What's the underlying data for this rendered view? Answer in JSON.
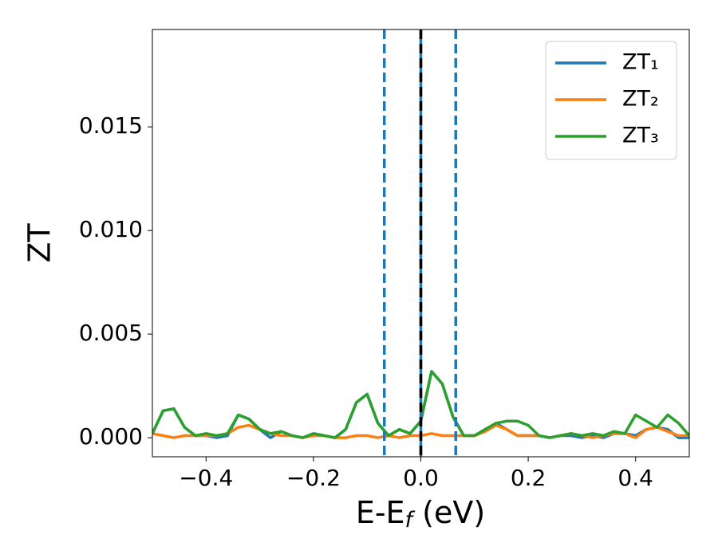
{
  "chart_data": {
    "type": "line",
    "ylabel": "ZT",
    "xlabel": {
      "main": "E-E",
      "sub": "f",
      "tail": " (eV)"
    },
    "xlim": [
      -0.5,
      0.5
    ],
    "ylim": [
      -0.00092,
      0.0197
    ],
    "xticks": [
      {
        "value": -0.4,
        "label": "−0.4"
      },
      {
        "value": -0.2,
        "label": "−0.2"
      },
      {
        "value": 0,
        "label": "0.0"
      },
      0.2,
      0.4
    ],
    "yticks": [
      {
        "value": 0,
        "label": "0.000"
      },
      {
        "value": 0.005,
        "label": "0.005"
      },
      {
        "value": 0.01,
        "label": "0.010"
      },
      {
        "value": 0.015,
        "label": "0.015"
      }
    ],
    "grid": false,
    "legend": "upper right",
    "vlines": [
      {
        "x": -0.068,
        "color": "#1f77b4",
        "style": "dashed"
      },
      {
        "x": 0,
        "color": "#1f77b4",
        "style": "solid"
      },
      {
        "x": 0,
        "color": "#000000",
        "style": "dashed"
      },
      {
        "x": 0.065,
        "color": "#1f77b4",
        "style": "dashed"
      }
    ],
    "x": [
      -0.5,
      -0.48,
      -0.46,
      -0.44,
      -0.42,
      -0.4,
      -0.38,
      -0.36,
      -0.34,
      -0.32,
      -0.3,
      -0.28,
      -0.26,
      -0.24,
      -0.22,
      -0.2,
      -0.18,
      -0.16,
      -0.14,
      -0.12,
      -0.1,
      -0.08,
      -0.06,
      -0.04,
      -0.02,
      0,
      0.02,
      0.04,
      0.06,
      0.08,
      0.1,
      0.12,
      0.14,
      0.16,
      0.18,
      0.2,
      0.22,
      0.24,
      0.26,
      0.28,
      0.3,
      0.32,
      0.34,
      0.36,
      0.38,
      0.4,
      0.42,
      0.44,
      0.46,
      0.48,
      0.5
    ],
    "series": [
      {
        "name": "ZT₁",
        "color": "#1f77b4",
        "values": [
          0.0002,
          0.0013,
          0.0014,
          0.0005,
          0.0001,
          0.0001,
          0.0,
          0.0001,
          0.0011,
          0.0009,
          0.0004,
          0.0,
          0.0003,
          0.0001,
          0.0,
          0.0002,
          0.0001,
          0.0,
          0.0004,
          0.0017,
          0.0021,
          0.0007,
          0.0001,
          0.0004,
          0.0002,
          0.0008,
          0.0032,
          0.0026,
          0.001,
          0.0001,
          0.0001,
          0.0004,
          0.0007,
          0.0004,
          0.0001,
          0.0001,
          0.0001,
          0.0,
          0.0001,
          0.0001,
          0.0,
          0.0001,
          0.0,
          0.0002,
          0.0002,
          0.0001,
          0.0004,
          0.0005,
          0.0004,
          0.0,
          0.0
        ]
      },
      {
        "name": "ZT₂",
        "color": "#ff7f0e",
        "values": [
          0.0002,
          0.0001,
          0.0,
          0.0001,
          0.0001,
          0.0001,
          0.0001,
          0.0002,
          0.0005,
          0.0006,
          0.0004,
          0.0002,
          0.0001,
          0.0001,
          0.0,
          0.0001,
          0.0001,
          0.0,
          0.0,
          0.0001,
          0.0001,
          0.0,
          0.0001,
          0.0,
          0.0001,
          0.0001,
          0.0002,
          0.0001,
          0.0001,
          0.0001,
          0.0001,
          0.0003,
          0.0006,
          0.0004,
          0.0001,
          0.0001,
          0.0001,
          0.0,
          0.0001,
          0.0002,
          0.0001,
          0.0,
          0.0001,
          0.0002,
          0.0002,
          0.0,
          0.0004,
          0.0005,
          0.0003,
          0.0001,
          0.0001
        ]
      },
      {
        "name": "ZT₃",
        "color": "#2ca02c",
        "values": [
          0.0002,
          0.0013,
          0.0014,
          0.0005,
          0.0001,
          0.0002,
          0.0001,
          0.0002,
          0.0011,
          0.0009,
          0.0004,
          0.0002,
          0.0003,
          0.0001,
          0.0,
          0.0002,
          0.0001,
          0.0,
          0.0004,
          0.0017,
          0.0021,
          0.0007,
          0.0001,
          0.0004,
          0.0002,
          0.0008,
          0.0032,
          0.0026,
          0.001,
          0.0001,
          0.0001,
          0.0004,
          0.0007,
          0.0008,
          0.0008,
          0.0006,
          0.0001,
          0.0,
          0.0001,
          0.0002,
          0.0001,
          0.0002,
          0.0001,
          0.0003,
          0.0002,
          0.0011,
          0.0008,
          0.0005,
          0.0011,
          0.0007,
          0.0001
        ]
      }
    ]
  }
}
